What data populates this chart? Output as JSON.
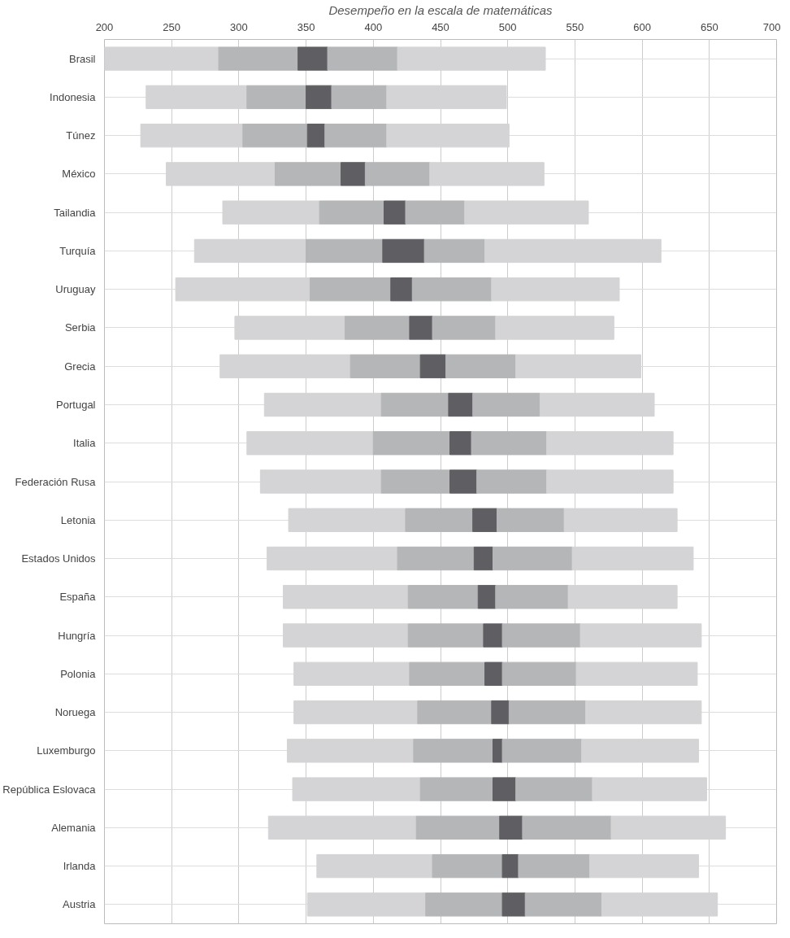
{
  "chart_data": {
    "type": "bar",
    "orientation": "horizontal",
    "xlabel": "Desempeño en la escala de matemáticas",
    "categories": [
      "Brasil",
      "Indonesia",
      "Túnez",
      "México",
      "Tailandia",
      "Turquía",
      "Uruguay",
      "Serbia",
      "Grecia",
      "Portugal",
      "Italia",
      "Federación Rusa",
      "Letonia",
      "Estados Unidos",
      "España",
      "Hungría",
      "Polonia",
      "Noruega",
      "Luxemburgo",
      "República Eslovaca",
      "Alemania",
      "Irlanda",
      "Austria"
    ],
    "series": [
      {
        "color": "#d4d4d6",
        "base": [
          200,
          231,
          227,
          246,
          288,
          267,
          253,
          297,
          286,
          319,
          306,
          316,
          337,
          321,
          333,
          333,
          341,
          341,
          336,
          340,
          322,
          358,
          351
        ],
        "values": [
          85,
          75,
          76,
          81,
          72,
          83,
          100,
          82,
          97,
          87,
          94,
          90,
          87,
          97,
          93,
          93,
          86,
          92,
          94,
          95,
          110,
          86,
          88
        ]
      },
      {
        "color": "#b5b6b8",
        "base": [
          285,
          306,
          303,
          327,
          360,
          350,
          353,
          379,
          383,
          406,
          400,
          406,
          424,
          418,
          426,
          426,
          427,
          433,
          430,
          435,
          432,
          444,
          439
        ],
        "values": [
          59,
          44,
          48,
          49,
          48,
          57,
          60,
          48,
          52,
          50,
          57,
          51,
          50,
          57,
          52,
          56,
          56,
          55,
          59,
          54,
          62,
          52,
          57
        ]
      },
      {
        "color": "#5f5f63",
        "base": [
          344,
          350,
          351,
          376,
          408,
          407,
          413,
          427,
          435,
          456,
          457,
          457,
          474,
          475,
          478,
          482,
          483,
          488,
          489,
          489,
          494,
          496,
          496
        ],
        "values": [
          22,
          19,
          13,
          18,
          16,
          31,
          16,
          17,
          19,
          18,
          16,
          20,
          18,
          14,
          13,
          14,
          13,
          13,
          7,
          17,
          17,
          12,
          17
        ]
      },
      {
        "color": "#b5b6b8",
        "base": [
          366,
          369,
          364,
          394,
          424,
          438,
          429,
          444,
          454,
          474,
          473,
          477,
          492,
          489,
          491,
          496,
          496,
          501,
          496,
          506,
          511,
          508,
          513
        ],
        "values": [
          52,
          41,
          46,
          48,
          44,
          45,
          59,
          47,
          52,
          50,
          56,
          52,
          50,
          59,
          54,
          58,
          55,
          57,
          59,
          57,
          66,
          53,
          57
        ]
      },
      {
        "color": "#d4d4d6",
        "base": [
          418,
          410,
          410,
          442,
          468,
          483,
          488,
          491,
          506,
          524,
          529,
          529,
          542,
          548,
          545,
          554,
          551,
          558,
          555,
          563,
          577,
          561,
          570
        ],
        "values": [
          110,
          89,
          91,
          85,
          92,
          131,
          95,
          88,
          93,
          85,
          94,
          94,
          84,
          90,
          81,
          90,
          90,
          86,
          87,
          85,
          85,
          81,
          86
        ]
      }
    ],
    "xlim": [
      200,
      700
    ],
    "xticks": [
      200,
      250,
      300,
      350,
      400,
      450,
      500,
      550,
      600,
      650,
      700
    ],
    "grid": true
  }
}
